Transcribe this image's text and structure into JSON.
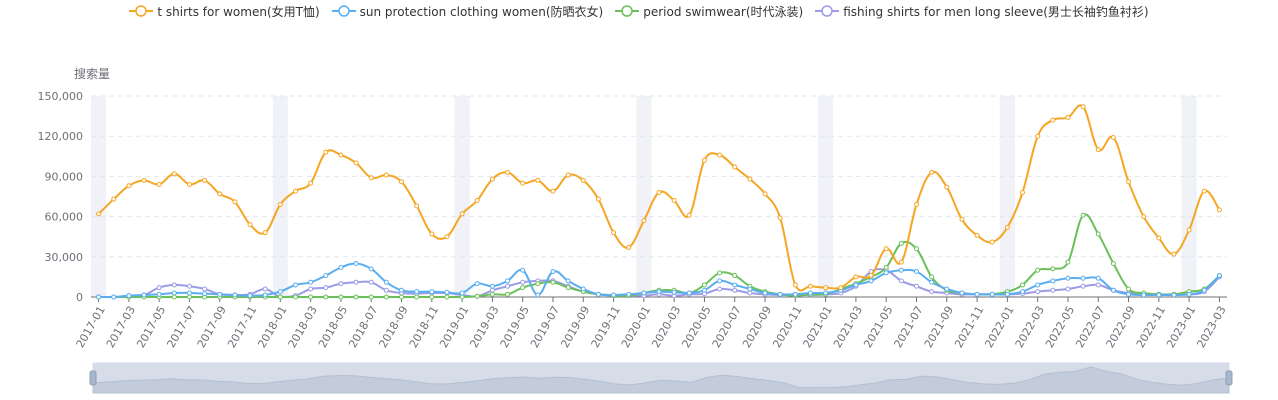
{
  "chart_data": {
    "type": "line",
    "ylabel": "搜索量",
    "ylim": [
      0,
      150000
    ],
    "yticks": [
      "0",
      "30,000",
      "60,000",
      "90,000",
      "120,000",
      "150,000"
    ],
    "ytick_values": [
      0,
      30000,
      60000,
      90000,
      120000,
      150000
    ],
    "legend_position": "top-center",
    "grid": true,
    "x": [
      "2017-01",
      "2017-02",
      "2017-03",
      "2017-04",
      "2017-05",
      "2017-06",
      "2017-07",
      "2017-08",
      "2017-09",
      "2017-10",
      "2017-11",
      "2017-12",
      "2018-01",
      "2018-02",
      "2018-03",
      "2018-04",
      "2018-05",
      "2018-06",
      "2018-07",
      "2018-08",
      "2018-09",
      "2018-10",
      "2018-11",
      "2018-12",
      "2019-01",
      "2019-02",
      "2019-03",
      "2019-04",
      "2019-05",
      "2019-06",
      "2019-07",
      "2019-08",
      "2019-09",
      "2019-10",
      "2019-11",
      "2019-12",
      "2020-01",
      "2020-02",
      "2020-03",
      "2020-04",
      "2020-05",
      "2020-06",
      "2020-07",
      "2020-08",
      "2020-09",
      "2020-10",
      "2020-11",
      "2020-12",
      "2021-01",
      "2021-02",
      "2021-03",
      "2021-04",
      "2021-05",
      "2021-06",
      "2021-07",
      "2021-08",
      "2021-09",
      "2021-10",
      "2021-11",
      "2021-12",
      "2022-01",
      "2022-02",
      "2022-03",
      "2022-04",
      "2022-05",
      "2022-06",
      "2022-07",
      "2022-08",
      "2022-09",
      "2022-10",
      "2022-11",
      "2022-12",
      "2023-01",
      "2023-02",
      "2023-03"
    ],
    "xtick_labels": [
      "2017-01",
      "2017-03",
      "2017-05",
      "2017-07",
      "2017-09",
      "2017-11",
      "2018-01",
      "2018-03",
      "2018-05",
      "2018-07",
      "2018-09",
      "2018-11",
      "2019-01",
      "2019-03",
      "2019-05",
      "2019-07",
      "2019-09",
      "2019-11",
      "2020-01",
      "2020-03",
      "2020-05",
      "2020-07",
      "2020-09",
      "2020-11",
      "2021-01",
      "2021-03",
      "2021-05",
      "2021-07",
      "2021-09",
      "2021-11",
      "2022-01",
      "2022-03",
      "2022-05",
      "2022-07",
      "2022-09",
      "2022-11",
      "2023-01",
      "2023-03"
    ],
    "series": [
      {
        "name": "t shirts for women(女用T恤)",
        "color": "#f5a623",
        "values": [
          62000,
          73000,
          83000,
          87000,
          84000,
          92000,
          84000,
          87000,
          77000,
          71000,
          54000,
          48000,
          69000,
          79000,
          85000,
          108000,
          106000,
          100000,
          89000,
          91000,
          86000,
          68000,
          47000,
          45000,
          62000,
          72000,
          88000,
          93000,
          85000,
          87000,
          79000,
          91000,
          87000,
          73000,
          48000,
          37000,
          57000,
          78000,
          72000,
          61000,
          102000,
          106000,
          97000,
          88000,
          77000,
          59000,
          9000,
          8000,
          7000,
          7000,
          15000,
          16000,
          36000,
          26000,
          69000,
          93000,
          82000,
          58000,
          46000,
          41000,
          52000,
          78000,
          120000,
          132000,
          134000,
          142000,
          110000,
          119000,
          86000,
          60000,
          44000,
          32000,
          50000,
          79000,
          65000
        ]
      },
      {
        "name": "sun protection clothing women(防晒衣女)",
        "color": "#5aaef0",
        "values": [
          0,
          0,
          1000,
          1500,
          2000,
          3000,
          3000,
          2500,
          2000,
          1500,
          1000,
          1500,
          4000,
          9000,
          11000,
          16000,
          22000,
          25000,
          21000,
          11000,
          5000,
          4000,
          4000,
          3500,
          3000,
          10000,
          8000,
          12000,
          20000,
          1500,
          19000,
          12000,
          6000,
          2000,
          1500,
          2000,
          3000,
          4000,
          3500,
          3000,
          5000,
          12000,
          9000,
          6000,
          3000,
          2000,
          2000,
          3000,
          3000,
          5000,
          9000,
          12000,
          18000,
          20000,
          19000,
          11000,
          6000,
          3000,
          2000,
          2000,
          2000,
          4000,
          9000,
          12000,
          14000,
          14000,
          14000,
          5000,
          2000,
          1500,
          1500,
          1500,
          2000,
          5000,
          16000
        ]
      },
      {
        "name": "period swimwear(时代泳装)",
        "color": "#6cc05a",
        "values": [
          0,
          0,
          0,
          0,
          0,
          0,
          0,
          0,
          0,
          0,
          0,
          0,
          0,
          0,
          0,
          0,
          0,
          0,
          0,
          0,
          0,
          0,
          0,
          0,
          0,
          500,
          2000,
          2000,
          7000,
          10000,
          11000,
          7000,
          4000,
          2000,
          1000,
          1000,
          3000,
          5000,
          5000,
          3000,
          9000,
          18000,
          16000,
          8000,
          4000,
          2000,
          1000,
          2000,
          2000,
          6000,
          10000,
          15000,
          22000,
          40000,
          36000,
          15000,
          5000,
          3000,
          2000,
          2000,
          4000,
          9000,
          20000,
          21000,
          26000,
          61000,
          47000,
          25000,
          6000,
          3000,
          2000,
          2000,
          4000,
          6000,
          16000
        ]
      },
      {
        "name": "fishing shirts for men long sleeve(男士长袖钓鱼衬衫)",
        "color": "#9b9be8",
        "values": [
          0,
          0,
          1000,
          1500,
          7000,
          9000,
          8000,
          6000,
          2000,
          1500,
          2000,
          6000,
          0,
          1000,
          6000,
          7000,
          10000,
          11000,
          11000,
          5000,
          3000,
          2500,
          3000,
          3000,
          1500,
          500,
          5000,
          8000,
          11000,
          12000,
          12000,
          8000,
          4000,
          2000,
          1500,
          1500,
          1000,
          2000,
          1000,
          2000,
          2500,
          6000,
          5000,
          3000,
          2000,
          1500,
          1500,
          1500,
          2000,
          3000,
          8000,
          19000,
          20000,
          12000,
          8000,
          4000,
          3000,
          2000,
          2000,
          2000,
          2000,
          2500,
          4000,
          5000,
          6000,
          8000,
          9000,
          5000,
          3000,
          2500,
          2000,
          2000,
          2000,
          4000,
          15000
        ]
      }
    ]
  }
}
